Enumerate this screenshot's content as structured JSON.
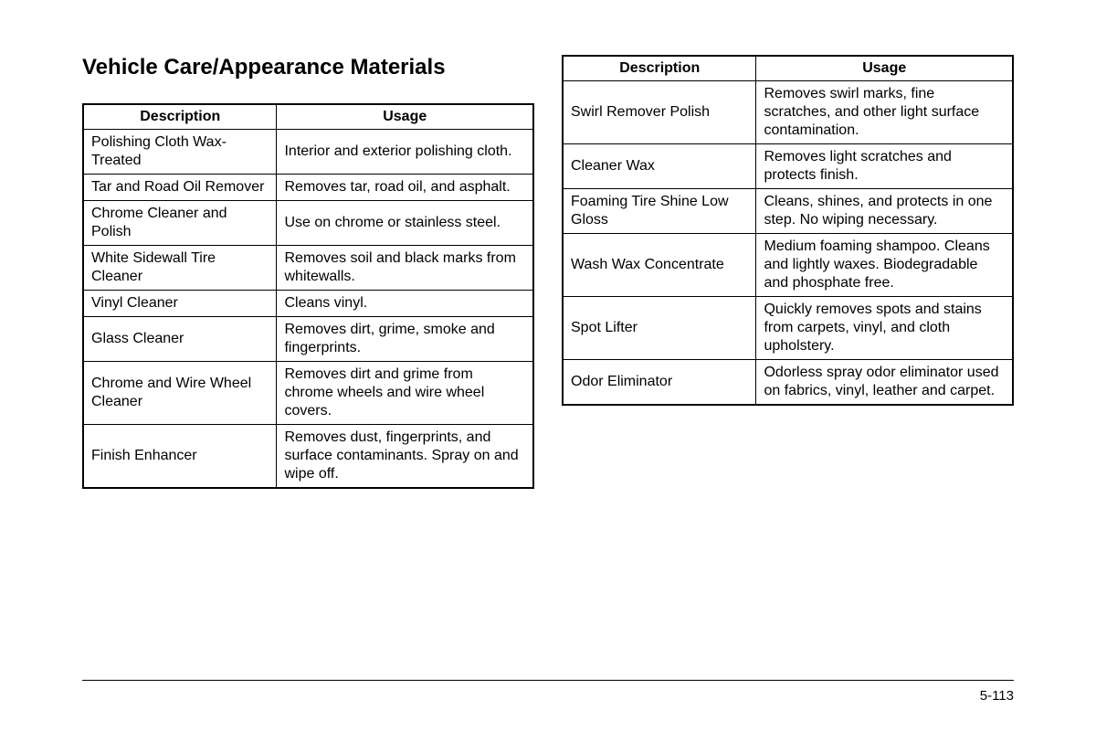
{
  "title": "Vehicle Care/Appearance Materials",
  "headers": {
    "description": "Description",
    "usage": "Usage"
  },
  "table1": {
    "rows": [
      {
        "desc": "Polishing Cloth Wax-Treated",
        "usage": "Interior and exterior polishing cloth."
      },
      {
        "desc": "Tar and Road Oil Remover",
        "usage": "Removes tar, road oil, and asphalt."
      },
      {
        "desc": "Chrome Cleaner and Polish",
        "usage": "Use on chrome or stainless steel."
      },
      {
        "desc": "White Sidewall Tire Cleaner",
        "usage": "Removes soil and black marks from whitewalls."
      },
      {
        "desc": "Vinyl Cleaner",
        "usage": "Cleans vinyl."
      },
      {
        "desc": "Glass Cleaner",
        "usage": "Removes dirt, grime, smoke and fingerprints."
      },
      {
        "desc": "Chrome and Wire Wheel Cleaner",
        "usage": "Removes dirt and grime from chrome wheels and wire wheel covers."
      },
      {
        "desc": "Finish Enhancer",
        "usage": "Removes dust, fingerprints, and surface contaminants. Spray on and wipe off."
      }
    ]
  },
  "table2": {
    "rows": [
      {
        "desc": "Swirl Remover Polish",
        "usage": "Removes swirl marks, fine scratches, and other light surface contamination."
      },
      {
        "desc": "Cleaner Wax",
        "usage": "Removes light scratches and protects finish."
      },
      {
        "desc": "Foaming Tire Shine Low Gloss",
        "usage": "Cleans, shines, and protects in one step. No wiping necessary."
      },
      {
        "desc": "Wash Wax Concentrate",
        "usage": "Medium foaming shampoo. Cleans and lightly waxes. Biodegradable and phosphate free."
      },
      {
        "desc": "Spot Lifter",
        "usage": "Quickly removes spots and stains from carpets, vinyl, and cloth upholstery."
      },
      {
        "desc": "Odor Eliminator",
        "usage": "Odorless spray odor eliminator used on fabrics, vinyl, leather and carpet."
      }
    ]
  },
  "pageNumber": "5-113",
  "styling": {
    "background_color": "#ffffff",
    "text_color": "#000000",
    "border_color": "#000000",
    "outer_border_width": 2,
    "inner_border_width": 1,
    "font_family": "Arial, Helvetica, sans-serif",
    "title_fontsize": 24,
    "header_fontsize": 16,
    "cell_fontsize": 16,
    "page_number_fontsize": 15
  }
}
